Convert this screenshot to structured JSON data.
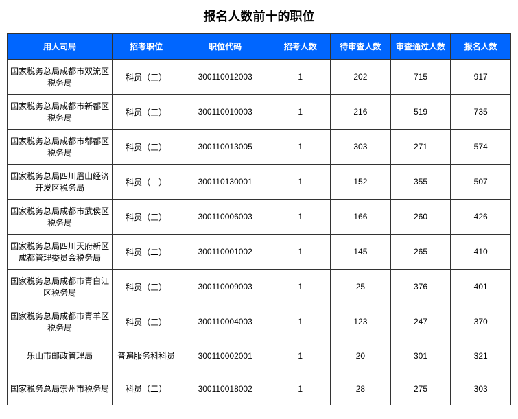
{
  "title": "报名人数前十的职位",
  "columns": [
    "用人司局",
    "招考职位",
    "职位代码",
    "招考人数",
    "待审查人数",
    "审查通过人数",
    "报名人数"
  ],
  "rows": [
    {
      "dept": "国家税务总局成都市双流区税务局",
      "position": "科员（三）",
      "code": "300110012003",
      "recruit": "1",
      "pending": "202",
      "passed": "715",
      "applied": "917"
    },
    {
      "dept": "国家税务总局成都市新都区税务局",
      "position": "科员（三）",
      "code": "300110010003",
      "recruit": "1",
      "pending": "216",
      "passed": "519",
      "applied": "735"
    },
    {
      "dept": "国家税务总局成都市郫都区税务局",
      "position": "科员（三）",
      "code": "300110013005",
      "recruit": "1",
      "pending": "303",
      "passed": "271",
      "applied": "574"
    },
    {
      "dept": "国家税务总局四川眉山经济开发区税务局",
      "position": "科员（一）",
      "code": "300110130001",
      "recruit": "1",
      "pending": "152",
      "passed": "355",
      "applied": "507"
    },
    {
      "dept": "国家税务总局成都市武侯区税务局",
      "position": "科员（三）",
      "code": "300110006003",
      "recruit": "1",
      "pending": "166",
      "passed": "260",
      "applied": "426"
    },
    {
      "dept": "国家税务总局四川天府新区成都管理委员会税务局",
      "position": "科员（二）",
      "code": "300110001002",
      "recruit": "1",
      "pending": "145",
      "passed": "265",
      "applied": "410"
    },
    {
      "dept": "国家税务总局成都市青白江区税务局",
      "position": "科员（三）",
      "code": "300110009003",
      "recruit": "1",
      "pending": "25",
      "passed": "376",
      "applied": "401"
    },
    {
      "dept": "国家税务总局成都市青羊区税务局",
      "position": "科员（三）",
      "code": "300110004003",
      "recruit": "1",
      "pending": "123",
      "passed": "247",
      "applied": "370"
    },
    {
      "dept": "乐山市邮政管理局",
      "position": "普遍服务科科员",
      "code": "300110002001",
      "recruit": "1",
      "pending": "20",
      "passed": "301",
      "applied": "321"
    },
    {
      "dept": "国家税务总局崇州市税务局",
      "position": "科员（二）",
      "code": "300110018002",
      "recruit": "1",
      "pending": "28",
      "passed": "275",
      "applied": "303"
    }
  ],
  "style": {
    "header_bg": "#0066ff",
    "header_fg": "#ffffff",
    "border_color": "#333333",
    "body_bg": "#ffffff",
    "font_family": "Microsoft YaHei",
    "title_fontsize": 18,
    "cell_fontsize": 12
  }
}
